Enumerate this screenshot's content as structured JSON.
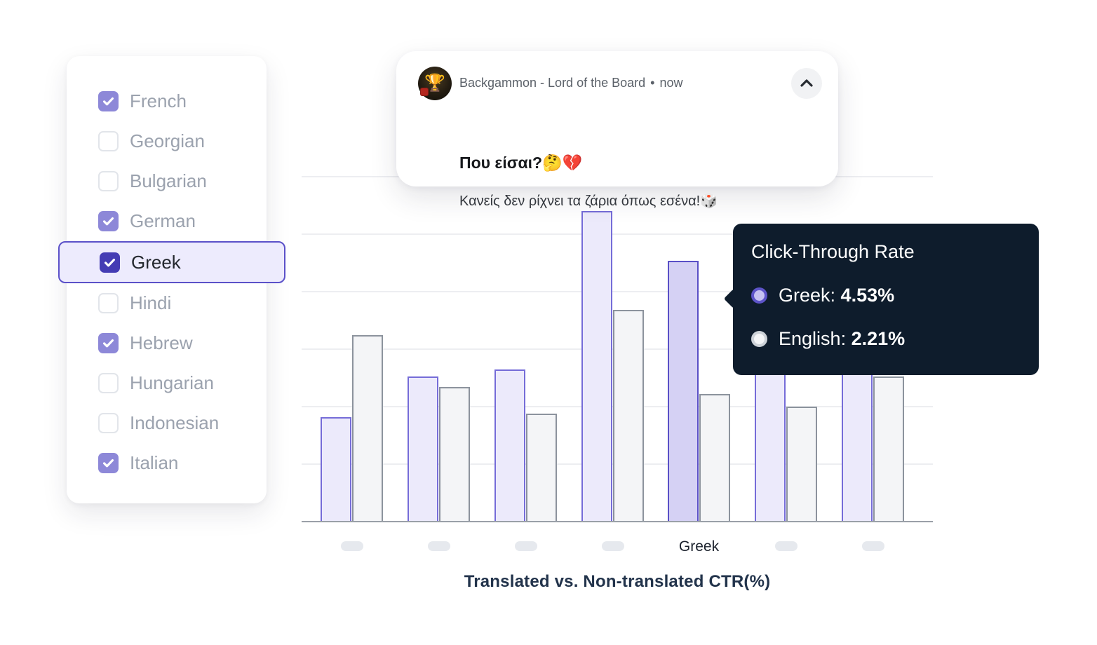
{
  "language_panel": {
    "items": [
      {
        "label": "French",
        "checked": true,
        "highlighted": false
      },
      {
        "label": "Georgian",
        "checked": false,
        "highlighted": false
      },
      {
        "label": "Bulgarian",
        "checked": false,
        "highlighted": false
      },
      {
        "label": "German",
        "checked": true,
        "highlighted": false
      },
      {
        "label": "Greek",
        "checked": true,
        "highlighted": true
      },
      {
        "label": "Hindi",
        "checked": false,
        "highlighted": false
      },
      {
        "label": "Hebrew",
        "checked": true,
        "highlighted": false
      },
      {
        "label": "Hungarian",
        "checked": false,
        "highlighted": false
      },
      {
        "label": "Indonesian",
        "checked": false,
        "highlighted": false
      },
      {
        "label": "Italian",
        "checked": true,
        "highlighted": false
      }
    ],
    "colors": {
      "checked_box": "#8D88D8",
      "checked_box_active": "#443CB4",
      "highlight_fill": "#EDEBFD",
      "highlight_border": "#5B51C9",
      "label_gray": "#9BA2AE",
      "label_active": "#23272E"
    }
  },
  "notification": {
    "app_name": "Backgammon - Lord of the Board",
    "separator": "•",
    "time": "now",
    "title": "Που είσαι?🤔💔",
    "body": "Κανείς δεν ρίχνει τα ζάρια όπως εσένα!🎲",
    "avatar_icon": "trophy-icon",
    "collapse_icon": "chevron-up-icon"
  },
  "tooltip": {
    "title": "Click-Through Rate",
    "rows": [
      {
        "label": "Greek",
        "value": "4.53%",
        "marker_fill": "#C6C2F1",
        "marker_ring": "#5D54C8"
      },
      {
        "label": "English",
        "value": "2.21%",
        "marker_fill": "#F4F5F7",
        "marker_ring": "#CDD2D8"
      }
    ],
    "background": "#0E1C2C"
  },
  "chart_data": {
    "type": "bar",
    "title": "Translated vs. Non-translated CTR(%)",
    "categories": [
      "",
      "",
      "",
      "",
      "Greek",
      "",
      ""
    ],
    "series": [
      {
        "name": "Translated",
        "color": "#ECEAFB",
        "border": "#756CD8",
        "values": [
          1.8,
          2.51,
          2.63,
          5.39,
          4.53,
          3.1,
          3.4
        ]
      },
      {
        "name": "Non-translated",
        "color": "#F4F5F7",
        "border": "#8C939D",
        "values": [
          3.23,
          2.33,
          1.87,
          3.67,
          2.21,
          1.99,
          2.51
        ]
      }
    ],
    "ylim": [
      0,
      6
    ],
    "gridline_step": 1,
    "grid": true,
    "legend_position": "none",
    "highlighted_group_index": 4,
    "xlabel": "",
    "ylabel": ""
  }
}
